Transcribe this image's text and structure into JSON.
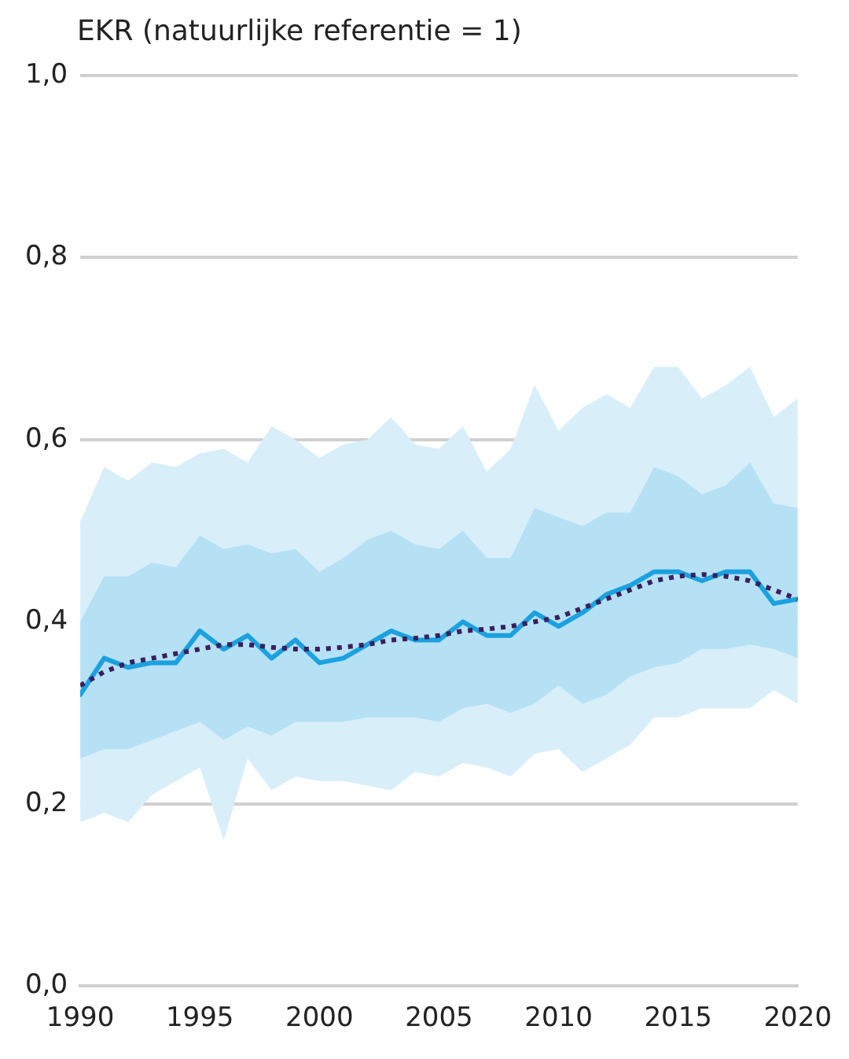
{
  "chart_data": {
    "type": "line",
    "ylabel": "EKR (natuurlijke referentie = 1)",
    "x": [
      1990,
      1991,
      1992,
      1993,
      1994,
      1995,
      1996,
      1997,
      1998,
      1999,
      2000,
      2001,
      2002,
      2003,
      2004,
      2005,
      2006,
      2007,
      2008,
      2009,
      2010,
      2011,
      2012,
      2013,
      2014,
      2015,
      2016,
      2017,
      2018,
      2019,
      2020
    ],
    "xlim": [
      1990,
      2020
    ],
    "xticks": [
      1990,
      1995,
      2000,
      2005,
      2010,
      2015,
      2020
    ],
    "ylim": [
      0,
      1
    ],
    "yticks": [
      {
        "value": 0,
        "label": "0,0"
      },
      {
        "value": 0.2,
        "label": "0,2"
      },
      {
        "value": 0.4,
        "label": "0,4"
      },
      {
        "value": 0.6,
        "label": "0,6"
      },
      {
        "value": 0.8,
        "label": "0,8"
      },
      {
        "value": 1,
        "label": "1,0"
      }
    ],
    "grid": "y",
    "legend": false,
    "marker": "none",
    "series": [
      {
        "color": "#1ba1df",
        "line_style": "solid",
        "values": [
          0.32,
          0.36,
          0.35,
          0.355,
          0.355,
          0.39,
          0.37,
          0.385,
          0.36,
          0.38,
          0.355,
          0.36,
          0.375,
          0.39,
          0.38,
          0.38,
          0.4,
          0.385,
          0.385,
          0.41,
          0.395,
          0.41,
          0.43,
          0.44,
          0.455,
          0.455,
          0.445,
          0.455,
          0.455,
          0.42,
          0.425
        ],
        "lower": [
          0.25,
          0.26,
          0.26,
          0.27,
          0.28,
          0.29,
          0.27,
          0.285,
          0.275,
          0.29,
          0.29,
          0.29,
          0.295,
          0.295,
          0.295,
          0.29,
          0.305,
          0.31,
          0.3,
          0.31,
          0.33,
          0.31,
          0.32,
          0.34,
          0.35,
          0.355,
          0.37,
          0.37,
          0.375,
          0.37,
          0.36
        ],
        "upper": [
          0.4,
          0.45,
          0.45,
          0.465,
          0.46,
          0.495,
          0.48,
          0.485,
          0.475,
          0.48,
          0.455,
          0.47,
          0.49,
          0.5,
          0.485,
          0.48,
          0.5,
          0.47,
          0.47,
          0.525,
          0.515,
          0.505,
          0.52,
          0.52,
          0.57,
          0.56,
          0.54,
          0.55,
          0.575,
          0.53,
          0.525
        ]
      },
      {
        "color": "#3b1f5c",
        "line_style": "dotted",
        "values": [
          0.33,
          0.345,
          0.355,
          0.36,
          0.365,
          0.37,
          0.375,
          0.375,
          0.372,
          0.37,
          0.37,
          0.372,
          0.375,
          0.38,
          0.382,
          0.385,
          0.39,
          0.392,
          0.395,
          0.4,
          0.405,
          0.415,
          0.425,
          0.435,
          0.445,
          0.45,
          0.452,
          0.45,
          0.445,
          0.435,
          0.425
        ],
        "lower": [
          0.18,
          0.19,
          0.18,
          0.21,
          0.225,
          0.24,
          0.16,
          0.25,
          0.215,
          0.23,
          0.225,
          0.225,
          0.22,
          0.215,
          0.235,
          0.23,
          0.245,
          0.24,
          0.23,
          0.255,
          0.26,
          0.235,
          0.25,
          0.265,
          0.295,
          0.295,
          0.305,
          0.305,
          0.305,
          0.325,
          0.31
        ],
        "upper": [
          0.51,
          0.57,
          0.555,
          0.575,
          0.57,
          0.585,
          0.59,
          0.575,
          0.615,
          0.6,
          0.58,
          0.595,
          0.6,
          0.625,
          0.595,
          0.59,
          0.615,
          0.565,
          0.59,
          0.66,
          0.61,
          0.635,
          0.65,
          0.635,
          0.68,
          0.68,
          0.645,
          0.66,
          0.68,
          0.625,
          0.645
        ]
      }
    ]
  }
}
